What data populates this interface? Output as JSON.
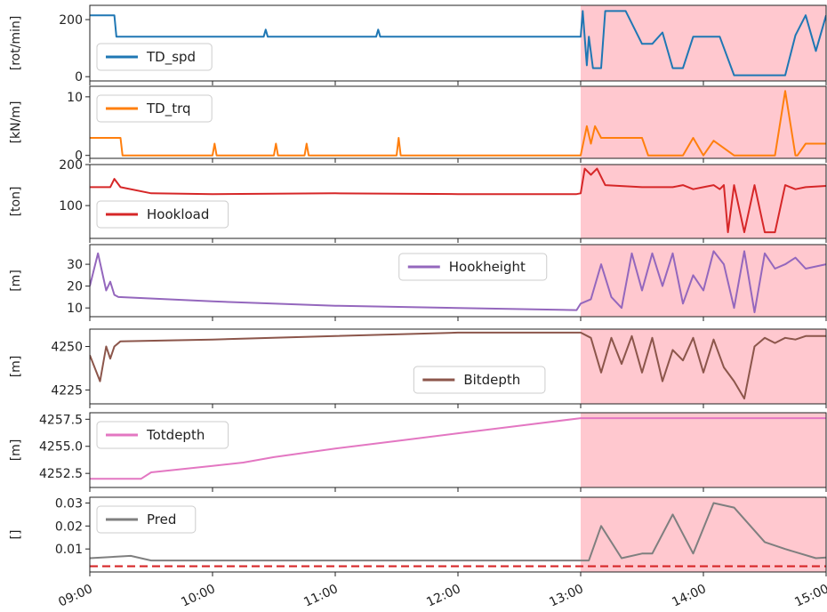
{
  "chart_data": {
    "type": "line",
    "x_axis": {
      "type": "time",
      "range": [
        "09:00",
        "15:00"
      ],
      "tick_labels": [
        "09:00",
        "10:00",
        "11:00",
        "12:00",
        "13:00",
        "14:00",
        "15:00"
      ]
    },
    "highlight": {
      "x_range": [
        "13:00",
        "15:00"
      ],
      "color": "#ffc8cf"
    },
    "panels": [
      {
        "ylabel": "[rot/min]",
        "yticks": [
          0,
          200
        ],
        "ylim": [
          -15,
          250
        ],
        "legend": {
          "label": "TD_spd",
          "position": "lower-left"
        },
        "series": {
          "name": "TD_spd",
          "color": "#1f77b4",
          "x": [
            "09:00",
            "09:12",
            "09:13",
            "10:25",
            "10:26",
            "10:27",
            "11:20",
            "11:21",
            "11:22",
            "12:58",
            "13:00",
            "13:01",
            "13:03",
            "13:04",
            "13:06",
            "13:10",
            "13:12",
            "13:13",
            "13:20",
            "13:22",
            "13:30",
            "13:35",
            "13:40",
            "13:45",
            "13:50",
            "13:55",
            "14:00",
            "14:05",
            "14:08",
            "14:15",
            "14:20",
            "14:27",
            "14:30",
            "14:35",
            "14:40",
            "14:45",
            "14:50",
            "14:55",
            "15:00"
          ],
          "y": [
            215,
            215,
            140,
            140,
            165,
            140,
            140,
            165,
            140,
            140,
            140,
            230,
            40,
            140,
            30,
            30,
            230,
            230,
            230,
            230,
            115,
            115,
            155,
            30,
            30,
            140,
            140,
            140,
            140,
            5,
            5,
            5,
            5,
            5,
            5,
            145,
            215,
            90,
            215
          ]
        }
      },
      {
        "ylabel": "[kN/m]",
        "yticks": [
          0,
          10
        ],
        "ylim": [
          -0.5,
          11.8
        ],
        "legend": {
          "label": "TD_trq",
          "position": "upper-left"
        },
        "series": {
          "name": "TD_trq",
          "color": "#ff7f0e",
          "x": [
            "09:00",
            "09:15",
            "09:16",
            "10:00",
            "10:01",
            "10:02",
            "10:30",
            "10:31",
            "10:32",
            "10:45",
            "10:46",
            "10:47",
            "11:30",
            "11:31",
            "11:32",
            "12:58",
            "13:00",
            "13:03",
            "13:05",
            "13:07",
            "13:10",
            "13:30",
            "13:33",
            "13:40",
            "13:50",
            "13:55",
            "14:00",
            "14:05",
            "14:15",
            "14:20",
            "14:25",
            "14:30",
            "14:35",
            "14:40",
            "14:45",
            "14:46",
            "14:50",
            "14:55",
            "15:00"
          ],
          "y": [
            3,
            3,
            0,
            0,
            2,
            0,
            0,
            2,
            0,
            0,
            2,
            0,
            0,
            3,
            0,
            0,
            0,
            5,
            2,
            5,
            3,
            3,
            0,
            0,
            0,
            3,
            0,
            2.5,
            0,
            0,
            0,
            0,
            0,
            11,
            0,
            0,
            2,
            2,
            2
          ]
        }
      },
      {
        "ylabel": "[ton]",
        "yticks": [
          100,
          200
        ],
        "ylim": [
          20,
          200
        ],
        "legend": {
          "label": "Hookload",
          "position": "lower-left"
        },
        "series": {
          "name": "Hookload",
          "color": "#d62728",
          "x": [
            "09:00",
            "09:10",
            "09:12",
            "09:15",
            "09:30",
            "10:00",
            "11:00",
            "12:00",
            "12:58",
            "13:00",
            "13:02",
            "13:05",
            "13:08",
            "13:12",
            "13:30",
            "13:45",
            "13:50",
            "13:55",
            "14:00",
            "14:05",
            "14:08",
            "14:10",
            "14:12",
            "14:15",
            "14:20",
            "14:25",
            "14:30",
            "14:35",
            "14:40",
            "14:45",
            "14:50",
            "15:00"
          ],
          "y": [
            145,
            145,
            165,
            145,
            130,
            128,
            130,
            128,
            128,
            130,
            190,
            175,
            190,
            150,
            145,
            145,
            150,
            140,
            145,
            150,
            140,
            150,
            35,
            150,
            35,
            150,
            35,
            35,
            150,
            140,
            145,
            148
          ]
        }
      },
      {
        "ylabel": "[m]",
        "yticks": [
          10,
          20,
          30
        ],
        "ylim": [
          6,
          39
        ],
        "legend": {
          "label": "Hookheight",
          "position": "upper-center"
        },
        "series": {
          "name": "Hookheight",
          "color": "#9467bd",
          "x": [
            "09:00",
            "09:04",
            "09:08",
            "09:10",
            "09:12",
            "09:14",
            "10:00",
            "11:00",
            "12:00",
            "12:58",
            "13:00",
            "13:05",
            "13:10",
            "13:15",
            "13:20",
            "13:25",
            "13:30",
            "13:35",
            "13:40",
            "13:45",
            "13:50",
            "13:55",
            "14:00",
            "14:05",
            "14:10",
            "14:15",
            "14:20",
            "14:25",
            "14:30",
            "14:35",
            "14:40",
            "14:45",
            "14:50",
            "15:00"
          ],
          "y": [
            20,
            35,
            18,
            22,
            16,
            15,
            13,
            11,
            10,
            9,
            12,
            14,
            30,
            15,
            10,
            35,
            18,
            35,
            20,
            35,
            12,
            25,
            18,
            36,
            30,
            10,
            36,
            8,
            35,
            28,
            30,
            33,
            28,
            30
          ]
        }
      },
      {
        "ylabel": "[m]",
        "yticks": [
          4225,
          4250
        ],
        "ylim": [
          4217,
          4260
        ],
        "legend": {
          "label": "Bitdepth",
          "position": "lower-center"
        },
        "series": {
          "name": "Bitdepth",
          "color": "#8c564b",
          "x": [
            "09:00",
            "09:05",
            "09:08",
            "09:10",
            "09:12",
            "09:15",
            "10:00",
            "11:00",
            "12:00",
            "12:58",
            "13:00",
            "13:05",
            "13:10",
            "13:15",
            "13:20",
            "13:25",
            "13:30",
            "13:35",
            "13:40",
            "13:45",
            "13:50",
            "13:55",
            "14:00",
            "14:05",
            "14:10",
            "14:15",
            "14:20",
            "14:25",
            "14:30",
            "14:35",
            "14:40",
            "14:45",
            "14:50",
            "15:00"
          ],
          "y": [
            4245,
            4230,
            4250,
            4243,
            4250,
            4253,
            4254,
            4256,
            4258,
            4258,
            4258,
            4255,
            4235,
            4255,
            4240,
            4256,
            4235,
            4255,
            4230,
            4248,
            4242,
            4255,
            4235,
            4254,
            4238,
            4230,
            4220,
            4250,
            4255,
            4252,
            4255,
            4254,
            4256,
            4256
          ]
        }
      },
      {
        "ylabel": "[m]",
        "yticks": [
          4252.5,
          4255.0,
          4257.5
        ],
        "yticklabels": [
          "4252.5",
          "4255.0",
          "4257.5"
        ],
        "ylim": [
          4251.2,
          4258.1
        ],
        "legend": {
          "label": "Totdepth",
          "position": "upper-left"
        },
        "series": {
          "name": "Totdepth",
          "color": "#e377c2",
          "x": [
            "09:00",
            "09:25",
            "09:30",
            "10:00",
            "10:15",
            "10:30",
            "11:00",
            "11:30",
            "12:00",
            "12:30",
            "13:00",
            "15:00"
          ],
          "y": [
            4252.0,
            4252.0,
            4252.6,
            4253.2,
            4253.5,
            4254.0,
            4254.8,
            4255.5,
            4256.2,
            4256.9,
            4257.6,
            4257.6
          ]
        }
      },
      {
        "ylabel": "[]",
        "yticks": [
          0.01,
          0.02,
          0.03
        ],
        "yticklabels": [
          "0.01",
          "0.02",
          "0.03"
        ],
        "ylim": [
          0.0,
          0.0325
        ],
        "legend": {
          "label": "Pred",
          "position": "upper-left"
        },
        "threshold": {
          "value": 0.0025,
          "color": "#d62728",
          "style": "dashed"
        },
        "series": {
          "name": "Pred",
          "color": "#7f7f7f",
          "x": [
            "09:00",
            "09:20",
            "09:30",
            "10:00",
            "11:00",
            "12:00",
            "13:00",
            "13:04",
            "13:10",
            "13:20",
            "13:30",
            "13:35",
            "13:45",
            "13:55",
            "14:05",
            "14:15",
            "14:30",
            "14:40",
            "14:55",
            "15:00"
          ],
          "y": [
            0.006,
            0.007,
            0.005,
            0.005,
            0.005,
            0.005,
            0.005,
            0.005,
            0.02,
            0.006,
            0.008,
            0.008,
            0.025,
            0.008,
            0.03,
            0.028,
            0.013,
            0.01,
            0.006,
            0.0063
          ]
        }
      }
    ]
  }
}
